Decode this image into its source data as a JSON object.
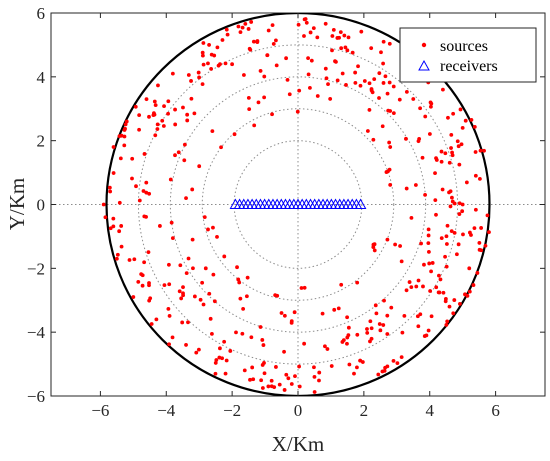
{
  "chart_data": {
    "type": "scatter",
    "title": "",
    "xlabel": "X/Km",
    "ylabel": "Y/Km",
    "xlim": [
      -7.5,
      7.5
    ],
    "ylim": [
      -6,
      6
    ],
    "xticks": [
      -6,
      -4,
      -2,
      0,
      2,
      4,
      6
    ],
    "yticks": [
      -6,
      -4,
      -2,
      0,
      2,
      4,
      6
    ],
    "xtick_labels": [
      "−6",
      "−4",
      "−2",
      "0",
      "2",
      "4",
      "6"
    ],
    "ytick_labels": [
      "−6",
      "−4",
      "−2",
      "0",
      "2",
      "4",
      "6"
    ],
    "outer_circle_radius": 6,
    "grid_circle_radii": [
      2,
      3,
      4,
      5
    ],
    "grid_lines": [
      "x=0",
      "y=0"
    ],
    "legend_position": "top-right",
    "series": [
      {
        "name": "sources",
        "marker": "dot",
        "color": "#ff0000",
        "count_approx": 500,
        "distribution": "random, mostly within 3–6 km radius",
        "sample_points": [
          [
            -5.9,
            0.0
          ],
          [
            -5.6,
            1.8
          ],
          [
            -5.5,
            -1.7
          ],
          [
            -5.2,
            2.6
          ],
          [
            -5.0,
            -2.9
          ],
          [
            -4.6,
            3.3
          ],
          [
            -4.3,
            -3.6
          ],
          [
            -3.8,
            4.1
          ],
          [
            -3.4,
            -4.4
          ],
          [
            -2.7,
            5.0
          ],
          [
            -2.2,
            -5.3
          ],
          [
            -1.5,
            5.5
          ],
          [
            -0.9,
            -5.7
          ],
          [
            0.2,
            5.8
          ],
          [
            0.5,
            -5.4
          ],
          [
            1.3,
            5.4
          ],
          [
            1.7,
            -5.3
          ],
          [
            2.6,
            5.1
          ],
          [
            2.9,
            -4.9
          ],
          [
            3.5,
            4.4
          ],
          [
            3.9,
            -4.1
          ],
          [
            4.4,
            3.6
          ],
          [
            4.6,
            -3.2
          ],
          [
            5.0,
            2.4
          ],
          [
            5.2,
            -2.0
          ],
          [
            5.4,
            0.9
          ],
          [
            5.0,
            0.0
          ],
          [
            4.9,
            -0.3
          ],
          [
            -3.0,
            1.2
          ],
          [
            -3.2,
            -1.1
          ],
          [
            -2.6,
            2.3
          ],
          [
            -2.8,
            -2.0
          ],
          [
            2.8,
            1.8
          ],
          [
            3.1,
            -1.3
          ],
          [
            -1.2,
            3.2
          ],
          [
            1.1,
            -3.3
          ],
          [
            0.6,
            3.4
          ],
          [
            -0.5,
            -3.4
          ],
          [
            3.3,
            0.5
          ],
          [
            -3.4,
            0.2
          ]
        ]
      },
      {
        "name": "receivers",
        "marker": "triangle",
        "color": "#0000ff",
        "x_range": [
          -1.9,
          1.9
        ],
        "y": 0,
        "count": 31
      }
    ]
  }
}
